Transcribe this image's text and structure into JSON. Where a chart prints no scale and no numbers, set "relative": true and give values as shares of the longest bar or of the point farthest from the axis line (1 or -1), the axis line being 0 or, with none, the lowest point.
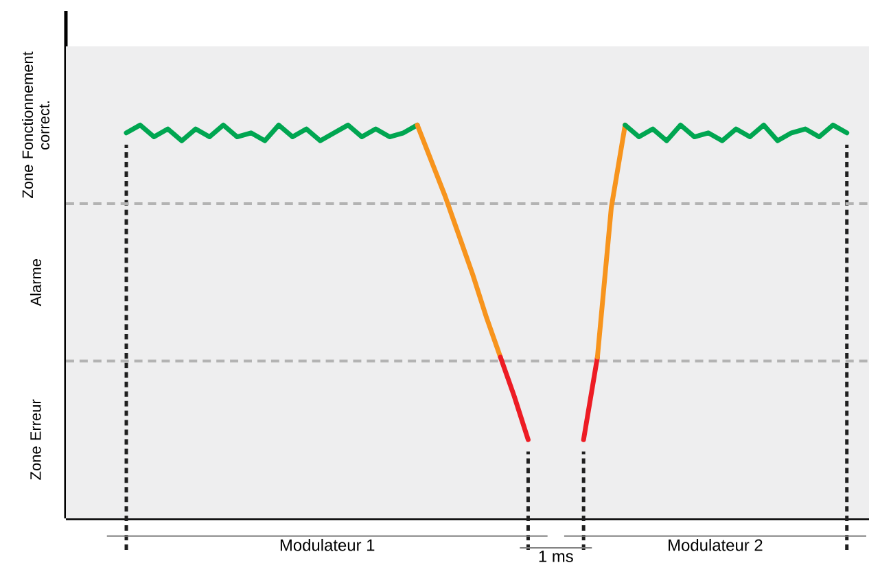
{
  "chart_data": {
    "type": "line",
    "relative": true,
    "categories": [
      null,
      null,
      null,
      null,
      null,
      null,
      null,
      null,
      null,
      null,
      null,
      null,
      null,
      null,
      null,
      null,
      null,
      null,
      null,
      null,
      null,
      null,
      null,
      null,
      null,
      null,
      null,
      null,
      null,
      null,
      null,
      null,
      null,
      null,
      null,
      null,
      null,
      null,
      null,
      null,
      null,
      null,
      null,
      null,
      null,
      null,
      null,
      null,
      null,
      null,
      null,
      null,
      null
    ],
    "series": [
      {
        "color": "#00a651",
        "values": [
          0.98,
          1.0,
          0.97,
          0.99,
          0.96,
          0.99,
          0.97,
          1.0,
          0.97,
          0.98,
          0.96,
          1.0,
          0.97,
          0.99,
          0.96,
          0.98,
          1.0,
          0.97,
          0.99,
          0.97,
          0.98,
          1.0,
          null,
          null,
          null,
          null,
          null,
          null,
          null,
          null,
          null,
          null,
          null,
          null,
          null,
          null,
          null,
          null,
          null,
          null,
          null,
          null,
          null,
          null,
          null,
          null,
          null,
          null,
          null,
          null,
          null,
          null,
          null
        ]
      },
      {
        "color": "#f7941d",
        "values": [
          null,
          null,
          null,
          null,
          null,
          null,
          null,
          null,
          null,
          null,
          null,
          null,
          null,
          null,
          null,
          null,
          null,
          null,
          null,
          null,
          null,
          1.0,
          0.91,
          0.82,
          0.72,
          0.62,
          0.51,
          0.41,
          null,
          null,
          null,
          null,
          null,
          null,
          null,
          null,
          null,
          null,
          null,
          null,
          null,
          null,
          null,
          null,
          null,
          null,
          null,
          null,
          null,
          null,
          null,
          null,
          null
        ]
      },
      {
        "color": "#ed1c24",
        "values": [
          null,
          null,
          null,
          null,
          null,
          null,
          null,
          null,
          null,
          null,
          null,
          null,
          null,
          null,
          null,
          null,
          null,
          null,
          null,
          null,
          null,
          null,
          null,
          null,
          null,
          null,
          null,
          0.41,
          0.31,
          0.2,
          null,
          null,
          null,
          null,
          null,
          null,
          null,
          null,
          null,
          null,
          null,
          null,
          null,
          null,
          null,
          null,
          null,
          null,
          null,
          null,
          null,
          null,
          null
        ]
      },
      {
        "color": "#ed1c24",
        "values": [
          null,
          null,
          null,
          null,
          null,
          null,
          null,
          null,
          null,
          null,
          null,
          null,
          null,
          null,
          null,
          null,
          null,
          null,
          null,
          null,
          null,
          null,
          null,
          null,
          null,
          null,
          null,
          null,
          null,
          null,
          null,
          null,
          null,
          0.2,
          0.41,
          null,
          null,
          null,
          null,
          null,
          null,
          null,
          null,
          null,
          null,
          null,
          null,
          null,
          null,
          null,
          null,
          null,
          null
        ]
      },
      {
        "color": "#f7941d",
        "values": [
          null,
          null,
          null,
          null,
          null,
          null,
          null,
          null,
          null,
          null,
          null,
          null,
          null,
          null,
          null,
          null,
          null,
          null,
          null,
          null,
          null,
          null,
          null,
          null,
          null,
          null,
          null,
          null,
          null,
          null,
          null,
          null,
          null,
          null,
          0.41,
          0.79,
          1.0,
          null,
          null,
          null,
          null,
          null,
          null,
          null,
          null,
          null,
          null,
          null,
          null,
          null,
          null,
          null,
          null
        ]
      },
      {
        "color": "#00a651",
        "values": [
          null,
          null,
          null,
          null,
          null,
          null,
          null,
          null,
          null,
          null,
          null,
          null,
          null,
          null,
          null,
          null,
          null,
          null,
          null,
          null,
          null,
          null,
          null,
          null,
          null,
          null,
          null,
          null,
          null,
          null,
          null,
          null,
          null,
          null,
          null,
          null,
          1.0,
          0.97,
          0.99,
          0.96,
          1.0,
          0.97,
          0.98,
          0.96,
          0.99,
          0.97,
          1.0,
          0.96,
          0.98,
          0.99,
          0.97,
          1.0,
          0.98
        ]
      }
    ],
    "bands": [
      {
        "axis": "y",
        "from": 0,
        "to": 0.4,
        "label": "Zone Erreur",
        "color": "#eeeeef"
      },
      {
        "axis": "y",
        "from": 0.4,
        "to": 0.8,
        "label": "Alarme",
        "color": "#eeeeef"
      },
      {
        "axis": "y",
        "from": 0.8,
        "to": 1.2,
        "label": "Zone Fonctionnement correct.",
        "color": "#eeeeef"
      }
    ],
    "ref_lines": [
      {
        "axis": "y",
        "value": 0.4,
        "color": "#b3b3b3",
        "line_style": "dashed"
      },
      {
        "axis": "y",
        "value": 0.8,
        "color": "#b3b3b3",
        "line_style": "dashed"
      }
    ],
    "annotations": [
      "Modulateur 1",
      "Modulateur 2",
      "1 ms"
    ],
    "marker": "none",
    "line_style": "solid"
  }
}
